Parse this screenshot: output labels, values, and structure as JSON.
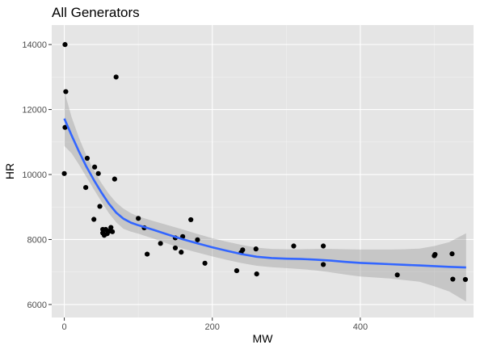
{
  "chart_data": {
    "type": "scatter",
    "title": "All Generators",
    "xlabel": "MW",
    "ylabel": "HR",
    "xlim": [
      -17,
      553
    ],
    "ylim": [
      5600,
      14600
    ],
    "x_ticks": [
      0,
      200,
      400
    ],
    "y_ticks": [
      6000,
      8000,
      10000,
      12000,
      14000
    ],
    "x_tick_labels": [
      "0",
      "200",
      "400"
    ],
    "y_tick_labels": [
      "6000",
      "8000",
      "10000",
      "12000",
      "14000"
    ],
    "grid": true,
    "background": "#e5e5e5",
    "point_color": "#000000",
    "smooth_color": "#3366ff",
    "band_color": "#999999",
    "points": [
      [
        1,
        14000
      ],
      [
        2,
        12550
      ],
      [
        70,
        13000
      ],
      [
        1,
        11450
      ],
      [
        0,
        10030
      ],
      [
        31,
        10500
      ],
      [
        41,
        10230
      ],
      [
        46,
        10030
      ],
      [
        68,
        9860
      ],
      [
        29,
        9600
      ],
      [
        48,
        9020
      ],
      [
        40,
        8620
      ],
      [
        63,
        8370
      ],
      [
        52,
        8310
      ],
      [
        56,
        8310
      ],
      [
        61,
        8260
      ],
      [
        65,
        8240
      ],
      [
        52,
        8200
      ],
      [
        58,
        8180
      ],
      [
        54,
        8130
      ],
      [
        100,
        8650
      ],
      [
        108,
        8360
      ],
      [
        171,
        8610
      ],
      [
        112,
        7550
      ],
      [
        130,
        7880
      ],
      [
        150,
        8050
      ],
      [
        160,
        8090
      ],
      [
        180,
        7990
      ],
      [
        150,
        7740
      ],
      [
        158,
        7610
      ],
      [
        190,
        7270
      ],
      [
        233,
        7040
      ],
      [
        239,
        7600
      ],
      [
        241,
        7680
      ],
      [
        259,
        7710
      ],
      [
        260,
        6940
      ],
      [
        310,
        7800
      ],
      [
        350,
        7800
      ],
      [
        350,
        7230
      ],
      [
        450,
        6910
      ],
      [
        500,
        7500
      ],
      [
        501,
        7540
      ],
      [
        524,
        7560
      ],
      [
        525,
        6780
      ],
      [
        542,
        6770
      ]
    ],
    "smooth": [
      {
        "x": 0,
        "y": 11720,
        "lo": 10880,
        "hi": 12560
      },
      {
        "x": 10,
        "y": 11200,
        "lo": 10650,
        "hi": 11760
      },
      {
        "x": 20,
        "y": 10700,
        "lo": 10300,
        "hi": 11120
      },
      {
        "x": 30,
        "y": 10240,
        "lo": 9920,
        "hi": 10580
      },
      {
        "x": 40,
        "y": 9830,
        "lo": 9540,
        "hi": 10130
      },
      {
        "x": 50,
        "y": 9450,
        "lo": 9170,
        "hi": 9740
      },
      {
        "x": 60,
        "y": 9110,
        "lo": 8820,
        "hi": 9410
      },
      {
        "x": 70,
        "y": 8830,
        "lo": 8530,
        "hi": 9140
      },
      {
        "x": 80,
        "y": 8640,
        "lo": 8330,
        "hi": 8950
      },
      {
        "x": 90,
        "y": 8520,
        "lo": 8240,
        "hi": 8810
      },
      {
        "x": 100,
        "y": 8440,
        "lo": 8180,
        "hi": 8710
      },
      {
        "x": 120,
        "y": 8300,
        "lo": 8030,
        "hi": 8570
      },
      {
        "x": 140,
        "y": 8150,
        "lo": 7870,
        "hi": 8440
      },
      {
        "x": 160,
        "y": 8010,
        "lo": 7720,
        "hi": 8310
      },
      {
        "x": 180,
        "y": 7880,
        "lo": 7600,
        "hi": 8170
      },
      {
        "x": 200,
        "y": 7760,
        "lo": 7480,
        "hi": 8040
      },
      {
        "x": 220,
        "y": 7650,
        "lo": 7370,
        "hi": 7930
      },
      {
        "x": 240,
        "y": 7550,
        "lo": 7270,
        "hi": 7830
      },
      {
        "x": 260,
        "y": 7470,
        "lo": 7190,
        "hi": 7750
      },
      {
        "x": 280,
        "y": 7430,
        "lo": 7150,
        "hi": 7710
      },
      {
        "x": 300,
        "y": 7410,
        "lo": 7120,
        "hi": 7700
      },
      {
        "x": 320,
        "y": 7400,
        "lo": 7090,
        "hi": 7700
      },
      {
        "x": 340,
        "y": 7380,
        "lo": 7050,
        "hi": 7710
      },
      {
        "x": 360,
        "y": 7350,
        "lo": 6990,
        "hi": 7710
      },
      {
        "x": 380,
        "y": 7310,
        "lo": 6920,
        "hi": 7700
      },
      {
        "x": 400,
        "y": 7280,
        "lo": 6860,
        "hi": 7690
      },
      {
        "x": 420,
        "y": 7260,
        "lo": 6830,
        "hi": 7690
      },
      {
        "x": 440,
        "y": 7240,
        "lo": 6800,
        "hi": 7690
      },
      {
        "x": 460,
        "y": 7220,
        "lo": 6750,
        "hi": 7700
      },
      {
        "x": 480,
        "y": 7200,
        "lo": 6700,
        "hi": 7720
      },
      {
        "x": 500,
        "y": 7180,
        "lo": 6560,
        "hi": 7800
      },
      {
        "x": 520,
        "y": 7160,
        "lo": 6400,
        "hi": 7920
      },
      {
        "x": 543,
        "y": 7140,
        "lo": 6090,
        "hi": 8190
      }
    ]
  }
}
